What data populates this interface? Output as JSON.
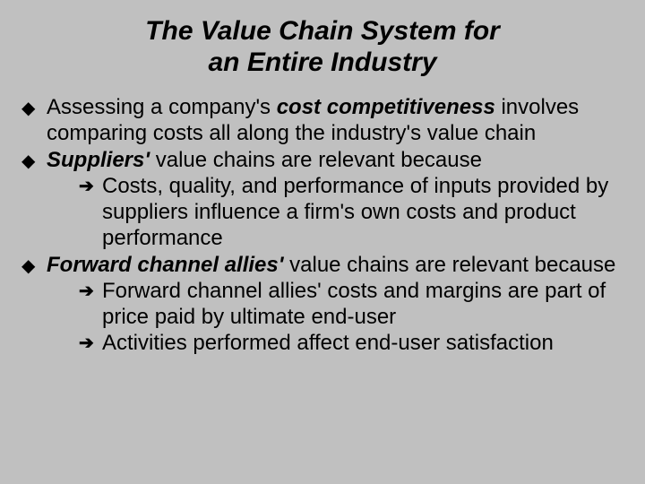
{
  "slide": {
    "title_line1": "The  Value  Chain  System for",
    "title_line2": "an  Entire  Industry",
    "background_color": "#c0c0c0",
    "text_color": "#000000",
    "title_fontsize": 30,
    "body_fontsize": 24,
    "bullet_glyph": "◆",
    "arrow_glyph": "➔",
    "bullets": [
      {
        "runs": [
          {
            "t": "Assessing a company's "
          },
          {
            "t": "cost competitiveness",
            "bi": true
          },
          {
            "t": " involves comparing costs all along the industry's value chain"
          }
        ],
        "sub": []
      },
      {
        "runs": [
          {
            "t": "Suppliers'",
            "bi": true
          },
          {
            "t": " value chains are relevant because"
          }
        ],
        "sub": [
          {
            "runs": [
              {
                "t": "Costs, quality, and performance of inputs provided by suppliers influence a firm's own costs and product performance"
              }
            ]
          }
        ]
      },
      {
        "runs": [
          {
            "t": "Forward channel allies'",
            "bi": true
          },
          {
            "t": " value chains are relevant because"
          }
        ],
        "sub": [
          {
            "runs": [
              {
                "t": "Forward channel allies' costs and margins are part of price paid by ultimate end-user"
              }
            ]
          },
          {
            "runs": [
              {
                "t": "Activities performed affect end-user satisfaction"
              }
            ]
          }
        ]
      }
    ]
  }
}
